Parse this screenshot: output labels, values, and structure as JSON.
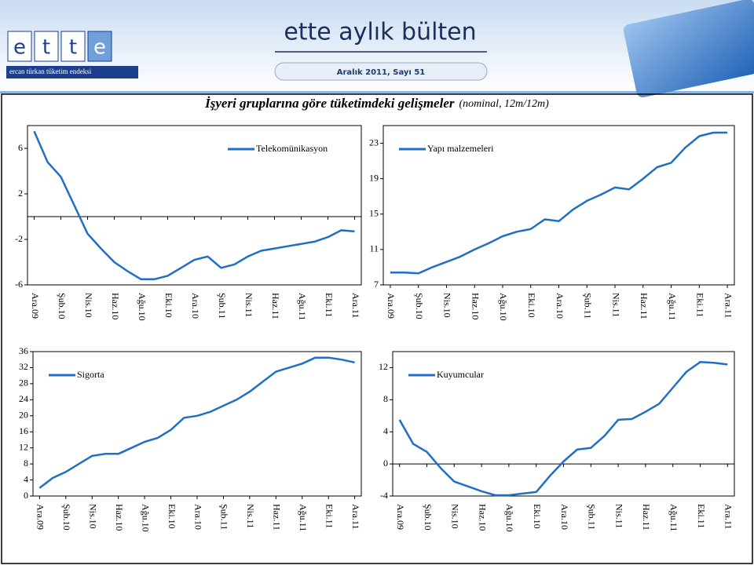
{
  "header": {
    "logo_letters": [
      "e",
      "t",
      "t",
      "e"
    ],
    "logo_caption": "ercan  türkan  tüketim  endeksi",
    "brand": "ette aylık bülten",
    "issue": "Aralık 2011, Sayı 51"
  },
  "page_title": {
    "main": "İşyeri gruplarına göre tüketimdeki gelişmeler",
    "note": "(nominal, 12m/12m)"
  },
  "chart_data": [
    {
      "type": "line",
      "categories": [
        "Ara.09",
        null,
        "Şub.10",
        null,
        "Nis.10",
        null,
        "Haz.10",
        null,
        "Ağu.10",
        null,
        "Eki.10",
        null,
        "Ara.10",
        null,
        "Şub.11",
        null,
        "Nis.11",
        null,
        "Haz.11",
        null,
        "Ağu.11",
        null,
        "Eki.11",
        null,
        "Ara.11"
      ],
      "series": [
        {
          "name": "Telekomünikasyon",
          "color": "#1f6fc6",
          "values": [
            7.5,
            4.8,
            3.5,
            1.0,
            -1.5,
            -2.8,
            -4.0,
            -4.8,
            -5.5,
            -5.5,
            -5.2,
            -4.5,
            -3.8,
            -3.5,
            -4.5,
            -4.2,
            -3.5,
            -3.0,
            -2.8,
            -2.6,
            -2.4,
            -2.2,
            -1.8,
            -1.2,
            -1.3
          ]
        }
      ],
      "ylim": [
        -6,
        8
      ],
      "yticks": [
        -6,
        -2,
        2,
        6
      ],
      "legend": "upper right"
    },
    {
      "type": "line",
      "categories": [
        "Ara.09",
        null,
        "Şub.10",
        null,
        "Nis.10",
        null,
        "Haz.10",
        null,
        "Ağu.10",
        null,
        "Eki.10",
        null,
        "Ara.10",
        null,
        "Şub.11",
        null,
        "Nis.11",
        null,
        "Haz.11",
        null,
        "Ağu.11",
        null,
        "Eki.11",
        null,
        "Ara.11"
      ],
      "series": [
        {
          "name": "Yapı malzemeleri",
          "color": "#1f6fc6",
          "values": [
            8.4,
            8.4,
            8.3,
            9.0,
            9.6,
            10.2,
            11.0,
            11.7,
            12.5,
            13.0,
            13.3,
            14.4,
            14.2,
            15.5,
            16.5,
            17.2,
            18.0,
            17.8,
            19.0,
            20.3,
            20.8,
            22.5,
            23.8,
            24.2,
            24.2
          ]
        }
      ],
      "ylim": [
        7,
        25
      ],
      "yticks": [
        7,
        11,
        15,
        19,
        23
      ],
      "legend": "upper left"
    },
    {
      "type": "line",
      "categories": [
        "Ara.09",
        null,
        "Şub.10",
        null,
        "Nis.10",
        null,
        "Haz.10",
        null,
        "Ağu.10",
        null,
        "Eki.10",
        null,
        "Ara.10",
        null,
        "Şub.11",
        null,
        "Nis.11",
        null,
        "Haz.11",
        null,
        "Ağu.11",
        null,
        "Eki.11",
        null,
        "Ara.11"
      ],
      "series": [
        {
          "name": "Sigorta",
          "color": "#1f6fc6",
          "values": [
            2,
            4.5,
            6,
            8,
            10,
            10.5,
            10.5,
            12,
            13.5,
            14.5,
            16.5,
            19.5,
            20,
            21,
            22.5,
            24,
            26,
            28.5,
            31,
            32,
            33,
            34.5,
            34.5,
            34,
            33.3
          ]
        }
      ],
      "ylim": [
        0,
        36
      ],
      "yticks": [
        0,
        4,
        8,
        12,
        16,
        20,
        24,
        28,
        32,
        36
      ],
      "legend": "upper left"
    },
    {
      "type": "line",
      "categories": [
        "Ara.09",
        null,
        "Şub.10",
        null,
        "Nis.10",
        null,
        "Haz.10",
        null,
        "Ağu.10",
        null,
        "Eki.10",
        null,
        "Ara.10",
        null,
        "Şub.11",
        null,
        "Nis.11",
        null,
        "Haz.11",
        null,
        "Ağu.11",
        null,
        "Eki.11",
        null,
        "Ara.11"
      ],
      "series": [
        {
          "name": "Kuyumcular",
          "color": "#1f6fc6",
          "values": [
            5.5,
            2.5,
            1.5,
            -0.5,
            -2.2,
            -2.8,
            -3.4,
            -3.9,
            -3.9,
            -3.7,
            -3.5,
            -1.5,
            0.3,
            1.8,
            2,
            3.5,
            5.5,
            5.6,
            6.5,
            7.5,
            9.5,
            11.5,
            12.7,
            12.6,
            12.4
          ]
        }
      ],
      "ylim": [
        -4,
        14
      ],
      "yticks": [
        -4,
        0,
        4,
        8,
        12
      ],
      "legend": "upper left"
    }
  ]
}
